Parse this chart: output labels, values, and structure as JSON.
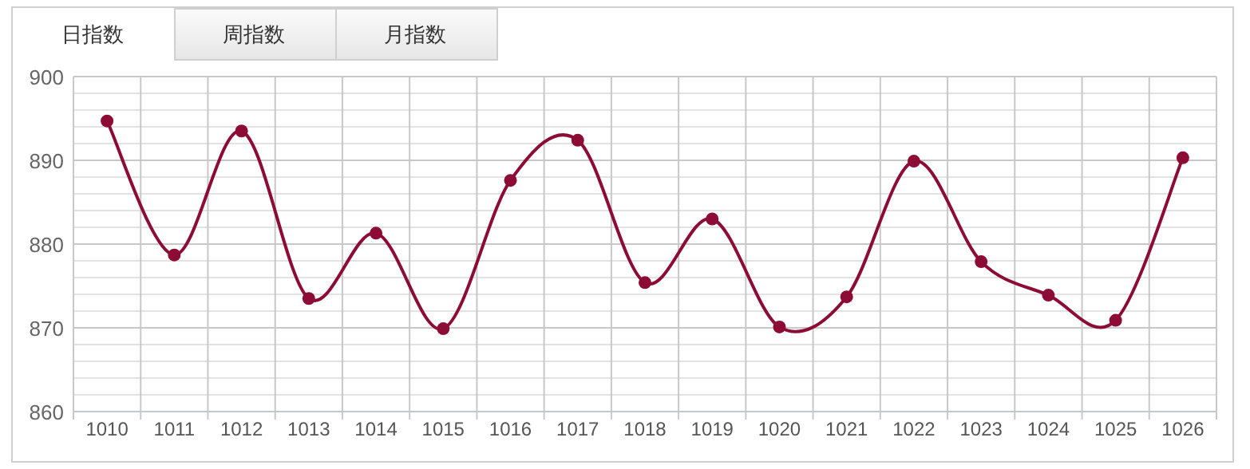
{
  "chart_data": {
    "type": "line",
    "annotations": [
      "日指数",
      "周指数",
      "月指数"
    ],
    "categories": [
      "1010",
      "1011",
      "1012",
      "1013",
      "1014",
      "1015",
      "1016",
      "1017",
      "1018",
      "1019",
      "1020",
      "1021",
      "1022",
      "1023",
      "1024",
      "1025",
      "1026"
    ],
    "series": [
      {
        "color": "#8c0c36",
        "values": [
          894.7,
          878.7,
          893.5,
          873.5,
          881.3,
          869.9,
          887.6,
          892.4,
          875.4,
          883.0,
          870.1,
          873.7,
          889.9,
          877.9,
          873.9,
          870.9,
          890.3
        ]
      }
    ],
    "ylim": [
      860,
      900
    ],
    "yticks": [
      860,
      {
        "value": 862,
        "label": null
      },
      {
        "value": 864,
        "label": null
      },
      {
        "value": 866,
        "label": null
      },
      {
        "value": 868,
        "label": null
      },
      870,
      {
        "value": 872,
        "label": null
      },
      {
        "value": 874,
        "label": null
      },
      {
        "value": 876,
        "label": null
      },
      {
        "value": 878,
        "label": null
      },
      880,
      {
        "value": 882,
        "label": null
      },
      {
        "value": 884,
        "label": null
      },
      {
        "value": 886,
        "label": null
      },
      {
        "value": 888,
        "label": null
      },
      890,
      {
        "value": 892,
        "label": null
      },
      {
        "value": 894,
        "label": null
      },
      {
        "value": 896,
        "label": null
      },
      {
        "value": 898,
        "label": null
      },
      900
    ],
    "grid": true,
    "marker": "circle",
    "line_style": "solid"
  }
}
